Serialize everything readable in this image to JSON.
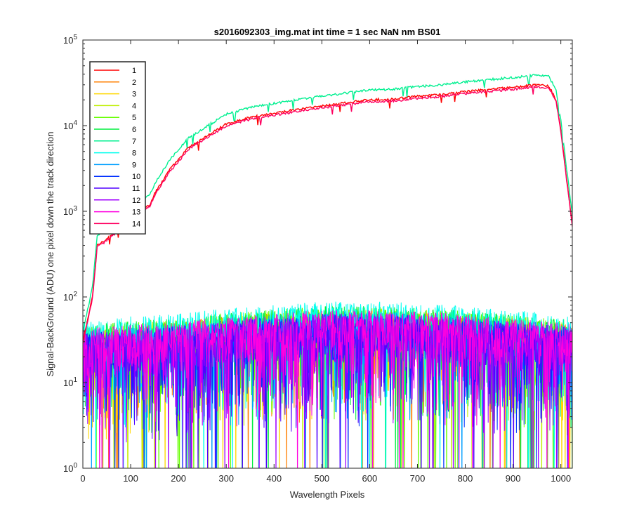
{
  "chart_data": {
    "type": "line",
    "title": "s2016092303_img.mat int time = 1 sec  NaN nm BS01",
    "xlabel": "Wavelength Pixels",
    "ylabel": "Signal-BackGround (ADU) one pixel down the track direction",
    "xlim": [
      0,
      1024
    ],
    "ylim": [
      1,
      100000
    ],
    "yscale": "log",
    "grid": false,
    "legend_position": "top-left",
    "x_ticks": [
      0,
      100,
      200,
      300,
      400,
      500,
      600,
      700,
      800,
      900,
      1000
    ],
    "y_ticks": [
      {
        "value": 1,
        "base": "10",
        "exp": "0"
      },
      {
        "value": 10,
        "base": "10",
        "exp": "1"
      },
      {
        "value": 100,
        "base": "10",
        "exp": "2"
      },
      {
        "value": 1000,
        "base": "10",
        "exp": "3"
      },
      {
        "value": 10000,
        "base": "10",
        "exp": "4"
      },
      {
        "value": 100000,
        "base": "10",
        "exp": "5"
      }
    ],
    "signal_profile": {
      "x": [
        0,
        20,
        30,
        50,
        80,
        100,
        120,
        140,
        150,
        160,
        170,
        180,
        200,
        220,
        250,
        300,
        350,
        400,
        450,
        500,
        550,
        600,
        650,
        700,
        750,
        800,
        850,
        900,
        950,
        975,
        990,
        1000,
        1010,
        1024
      ],
      "y": [
        30,
        100,
        400,
        480,
        650,
        800,
        1000,
        1200,
        1600,
        2000,
        2400,
        3000,
        4000,
        5500,
        7000,
        10500,
        12500,
        14000,
        15500,
        17000,
        18500,
        20000,
        20500,
        22000,
        23000,
        25000,
        26500,
        28000,
        30000,
        29000,
        20000,
        9000,
        3000,
        700
      ]
    },
    "noise_profile": {
      "x": [
        0,
        100,
        200,
        300,
        400,
        500,
        600,
        700,
        800,
        900,
        1000,
        1024
      ],
      "y": [
        25,
        28,
        30,
        35,
        38,
        42,
        42,
        40,
        37,
        33,
        30,
        28
      ]
    },
    "series": [
      {
        "name": "1",
        "color": "#ff0000",
        "group": "signal",
        "scale": 1.0
      },
      {
        "name": "2",
        "color": "#ff7f00",
        "group": "noise",
        "scale": 1.0
      },
      {
        "name": "3",
        "color": "#ffd700",
        "group": "noise",
        "scale": 1.0
      },
      {
        "name": "4",
        "color": "#bfef00",
        "group": "noise",
        "scale": 1.05
      },
      {
        "name": "5",
        "color": "#66ff00",
        "group": "noise",
        "scale": 1.1
      },
      {
        "name": "6",
        "color": "#00ef3f",
        "group": "noise",
        "scale": 1.1
      },
      {
        "name": "7",
        "color": "#00f090",
        "group": "signal",
        "scale": 1.3
      },
      {
        "name": "8",
        "color": "#00ffee",
        "group": "noise",
        "scale": 1.25
      },
      {
        "name": "9",
        "color": "#009fff",
        "group": "noise",
        "scale": 0.95
      },
      {
        "name": "10",
        "color": "#0030ff",
        "group": "noise",
        "scale": 0.9
      },
      {
        "name": "11",
        "color": "#5000ff",
        "group": "noise",
        "scale": 0.85
      },
      {
        "name": "12",
        "color": "#a000ff",
        "group": "noise",
        "scale": 0.9
      },
      {
        "name": "13",
        "color": "#ff00e0",
        "group": "noise",
        "scale": 1.0
      },
      {
        "name": "14",
        "color": "#ff0060",
        "group": "signal",
        "scale": 0.95
      }
    ]
  }
}
